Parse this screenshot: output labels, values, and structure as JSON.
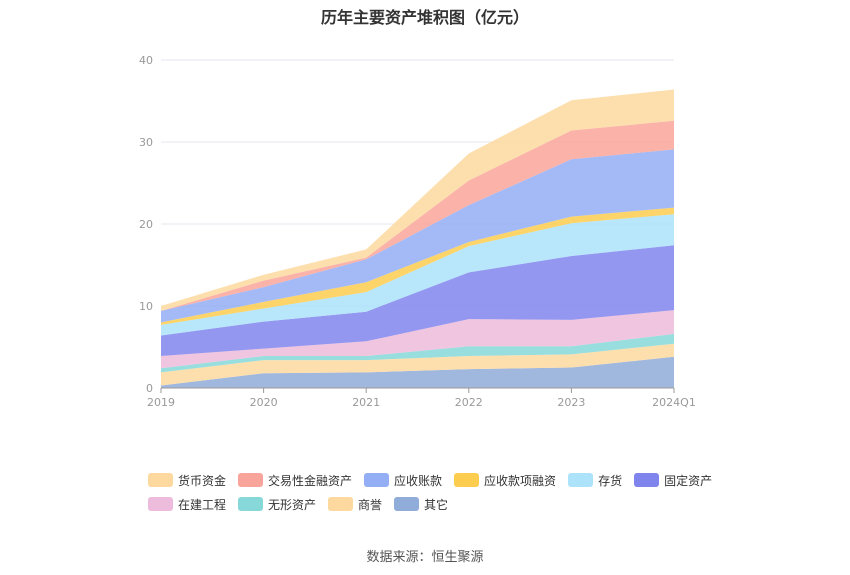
{
  "chart_data": {
    "type": "area",
    "stacked": true,
    "title": "历年主要资产堆积图（亿元）",
    "categories": [
      "2019",
      "2020",
      "2021",
      "2022",
      "2023",
      "2024Q1"
    ],
    "ylim": [
      0,
      40
    ],
    "yticks": [
      0,
      10,
      20,
      30,
      40
    ],
    "grid": true,
    "legend_position": "bottom",
    "series": [
      {
        "name": "其它",
        "color": "#90acd8",
        "values": [
          0.3,
          1.8,
          1.9,
          2.3,
          2.5,
          3.8
        ]
      },
      {
        "name": "商誉",
        "color": "#fdd9a0",
        "values": [
          1.6,
          1.6,
          1.5,
          1.6,
          1.6,
          1.6
        ]
      },
      {
        "name": "无形资产",
        "color": "#86d8d9",
        "values": [
          0.5,
          0.5,
          0.5,
          1.2,
          1.0,
          1.2
        ]
      },
      {
        "name": "在建工程",
        "color": "#edbbdb",
        "values": [
          1.5,
          0.9,
          1.8,
          3.3,
          3.2,
          2.9
        ]
      },
      {
        "name": "固定资产",
        "color": "#8085ed",
        "values": [
          2.5,
          3.3,
          3.6,
          5.7,
          7.8,
          7.9
        ]
      },
      {
        "name": "存货",
        "color": "#ace2fa",
        "values": [
          1.3,
          1.6,
          2.4,
          3.2,
          4.0,
          3.8
        ]
      },
      {
        "name": "应收款项融资",
        "color": "#fccd4f",
        "values": [
          0.3,
          0.8,
          1.2,
          0.5,
          0.8,
          0.8
        ]
      },
      {
        "name": "应收账款",
        "color": "#94aef5",
        "values": [
          1.4,
          1.8,
          2.8,
          4.5,
          7.0,
          7.1
        ]
      },
      {
        "name": "交易性金融资产",
        "color": "#f9a49a",
        "values": [
          0.0,
          0.8,
          0.2,
          3.0,
          3.5,
          3.5
        ]
      },
      {
        "name": "货币资金",
        "color": "#fdd9a0",
        "values": [
          0.6,
          0.7,
          1.0,
          3.3,
          3.7,
          3.8
        ]
      }
    ]
  },
  "legend_items": [
    {
      "label": "货币资金",
      "color": "#fdd9a0"
    },
    {
      "label": "交易性金融资产",
      "color": "#f9a49a"
    },
    {
      "label": "应收账款",
      "color": "#94aef5"
    },
    {
      "label": "应收款项融资",
      "color": "#fccd4f"
    },
    {
      "label": "存货",
      "color": "#ace2fa"
    },
    {
      "label": "固定资产",
      "color": "#8085ed"
    },
    {
      "label": "在建工程",
      "color": "#edbbdb"
    },
    {
      "label": "无形资产",
      "color": "#86d8d9"
    },
    {
      "label": "商誉",
      "color": "#fdd9a0"
    },
    {
      "label": "其它",
      "color": "#90acd8"
    }
  ],
  "source": "数据来源：恒生聚源"
}
